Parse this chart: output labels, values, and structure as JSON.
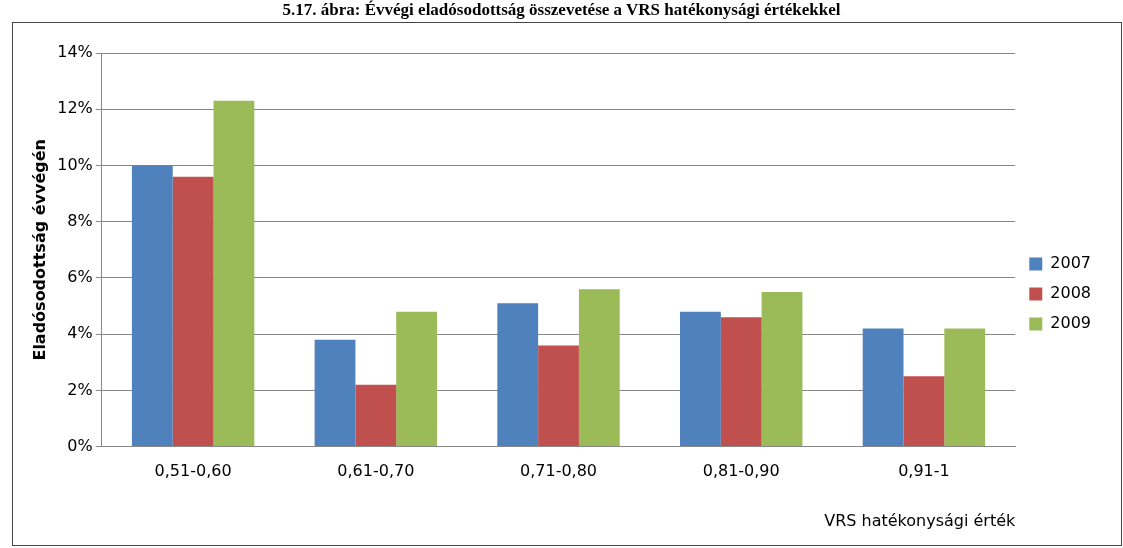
{
  "chart_data": {
    "type": "bar",
    "title": "5.17. ábra: Évvégi eladósodottság összevetése a VRS hatékonysági értékekkel",
    "xlabel": "VRS hatékonysági érték",
    "ylabel": "Eladósodottság évvégén",
    "categories": [
      "0,51-0,60",
      "0,61-0,70",
      "0,71-0,80",
      "0,81-0,90",
      "0,91-1"
    ],
    "series": [
      {
        "name": "2007",
        "color": "#4f81bd",
        "values": [
          10.0,
          3.8,
          5.1,
          4.8,
          4.2
        ]
      },
      {
        "name": "2008",
        "color": "#c0504d",
        "values": [
          9.6,
          2.2,
          3.6,
          4.6,
          2.5
        ]
      },
      {
        "name": "2009",
        "color": "#9bbb59",
        "values": [
          12.3,
          4.8,
          5.6,
          5.5,
          4.2
        ]
      }
    ],
    "ylim": [
      0,
      14
    ],
    "yticks": [
      {
        "value": 0,
        "label": "0%"
      },
      {
        "value": 2,
        "label": "2%"
      },
      {
        "value": 4,
        "label": "4%"
      },
      {
        "value": 6,
        "label": "6%"
      },
      {
        "value": 8,
        "label": "8%"
      },
      {
        "value": 10,
        "label": "10%"
      },
      {
        "value": 12,
        "label": "12%"
      },
      {
        "value": 14,
        "label": "14%"
      }
    ],
    "grid": "y",
    "legend": "right"
  }
}
